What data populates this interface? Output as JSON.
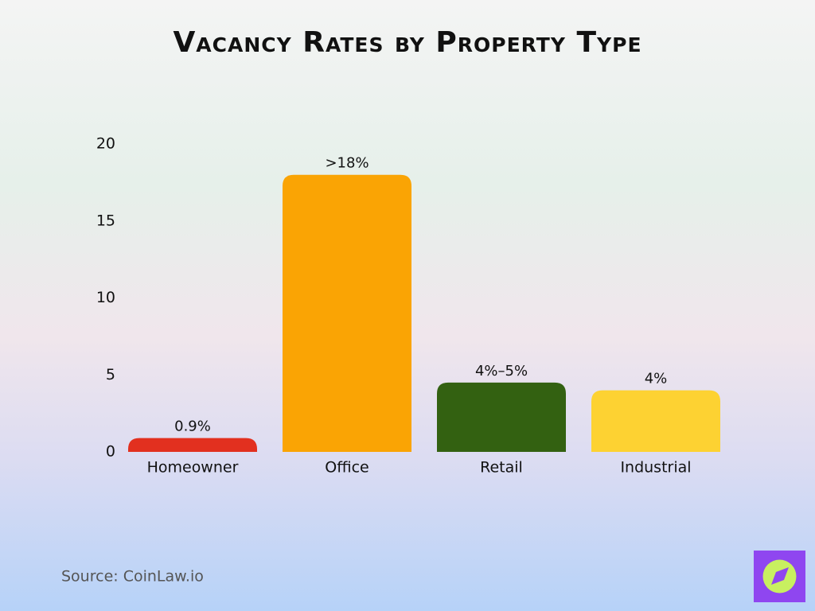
{
  "chart_data": {
    "type": "bar",
    "title": "Vacancy Rates by Property Type",
    "categories": [
      "Homeowner",
      "Office",
      "Retail",
      "Industrial"
    ],
    "values": [
      0.9,
      18,
      4.5,
      4
    ],
    "value_labels": [
      "0.9%",
      ">18%",
      "4%–5%",
      "4%"
    ],
    "colors": [
      "#e2301f",
      "#faa404",
      "#336111",
      "#fdd232"
    ],
    "ylim": [
      0,
      20
    ],
    "yticks": [
      0,
      5,
      10,
      15,
      20
    ],
    "grid": false,
    "source": "Source: CoinLaw.io"
  }
}
